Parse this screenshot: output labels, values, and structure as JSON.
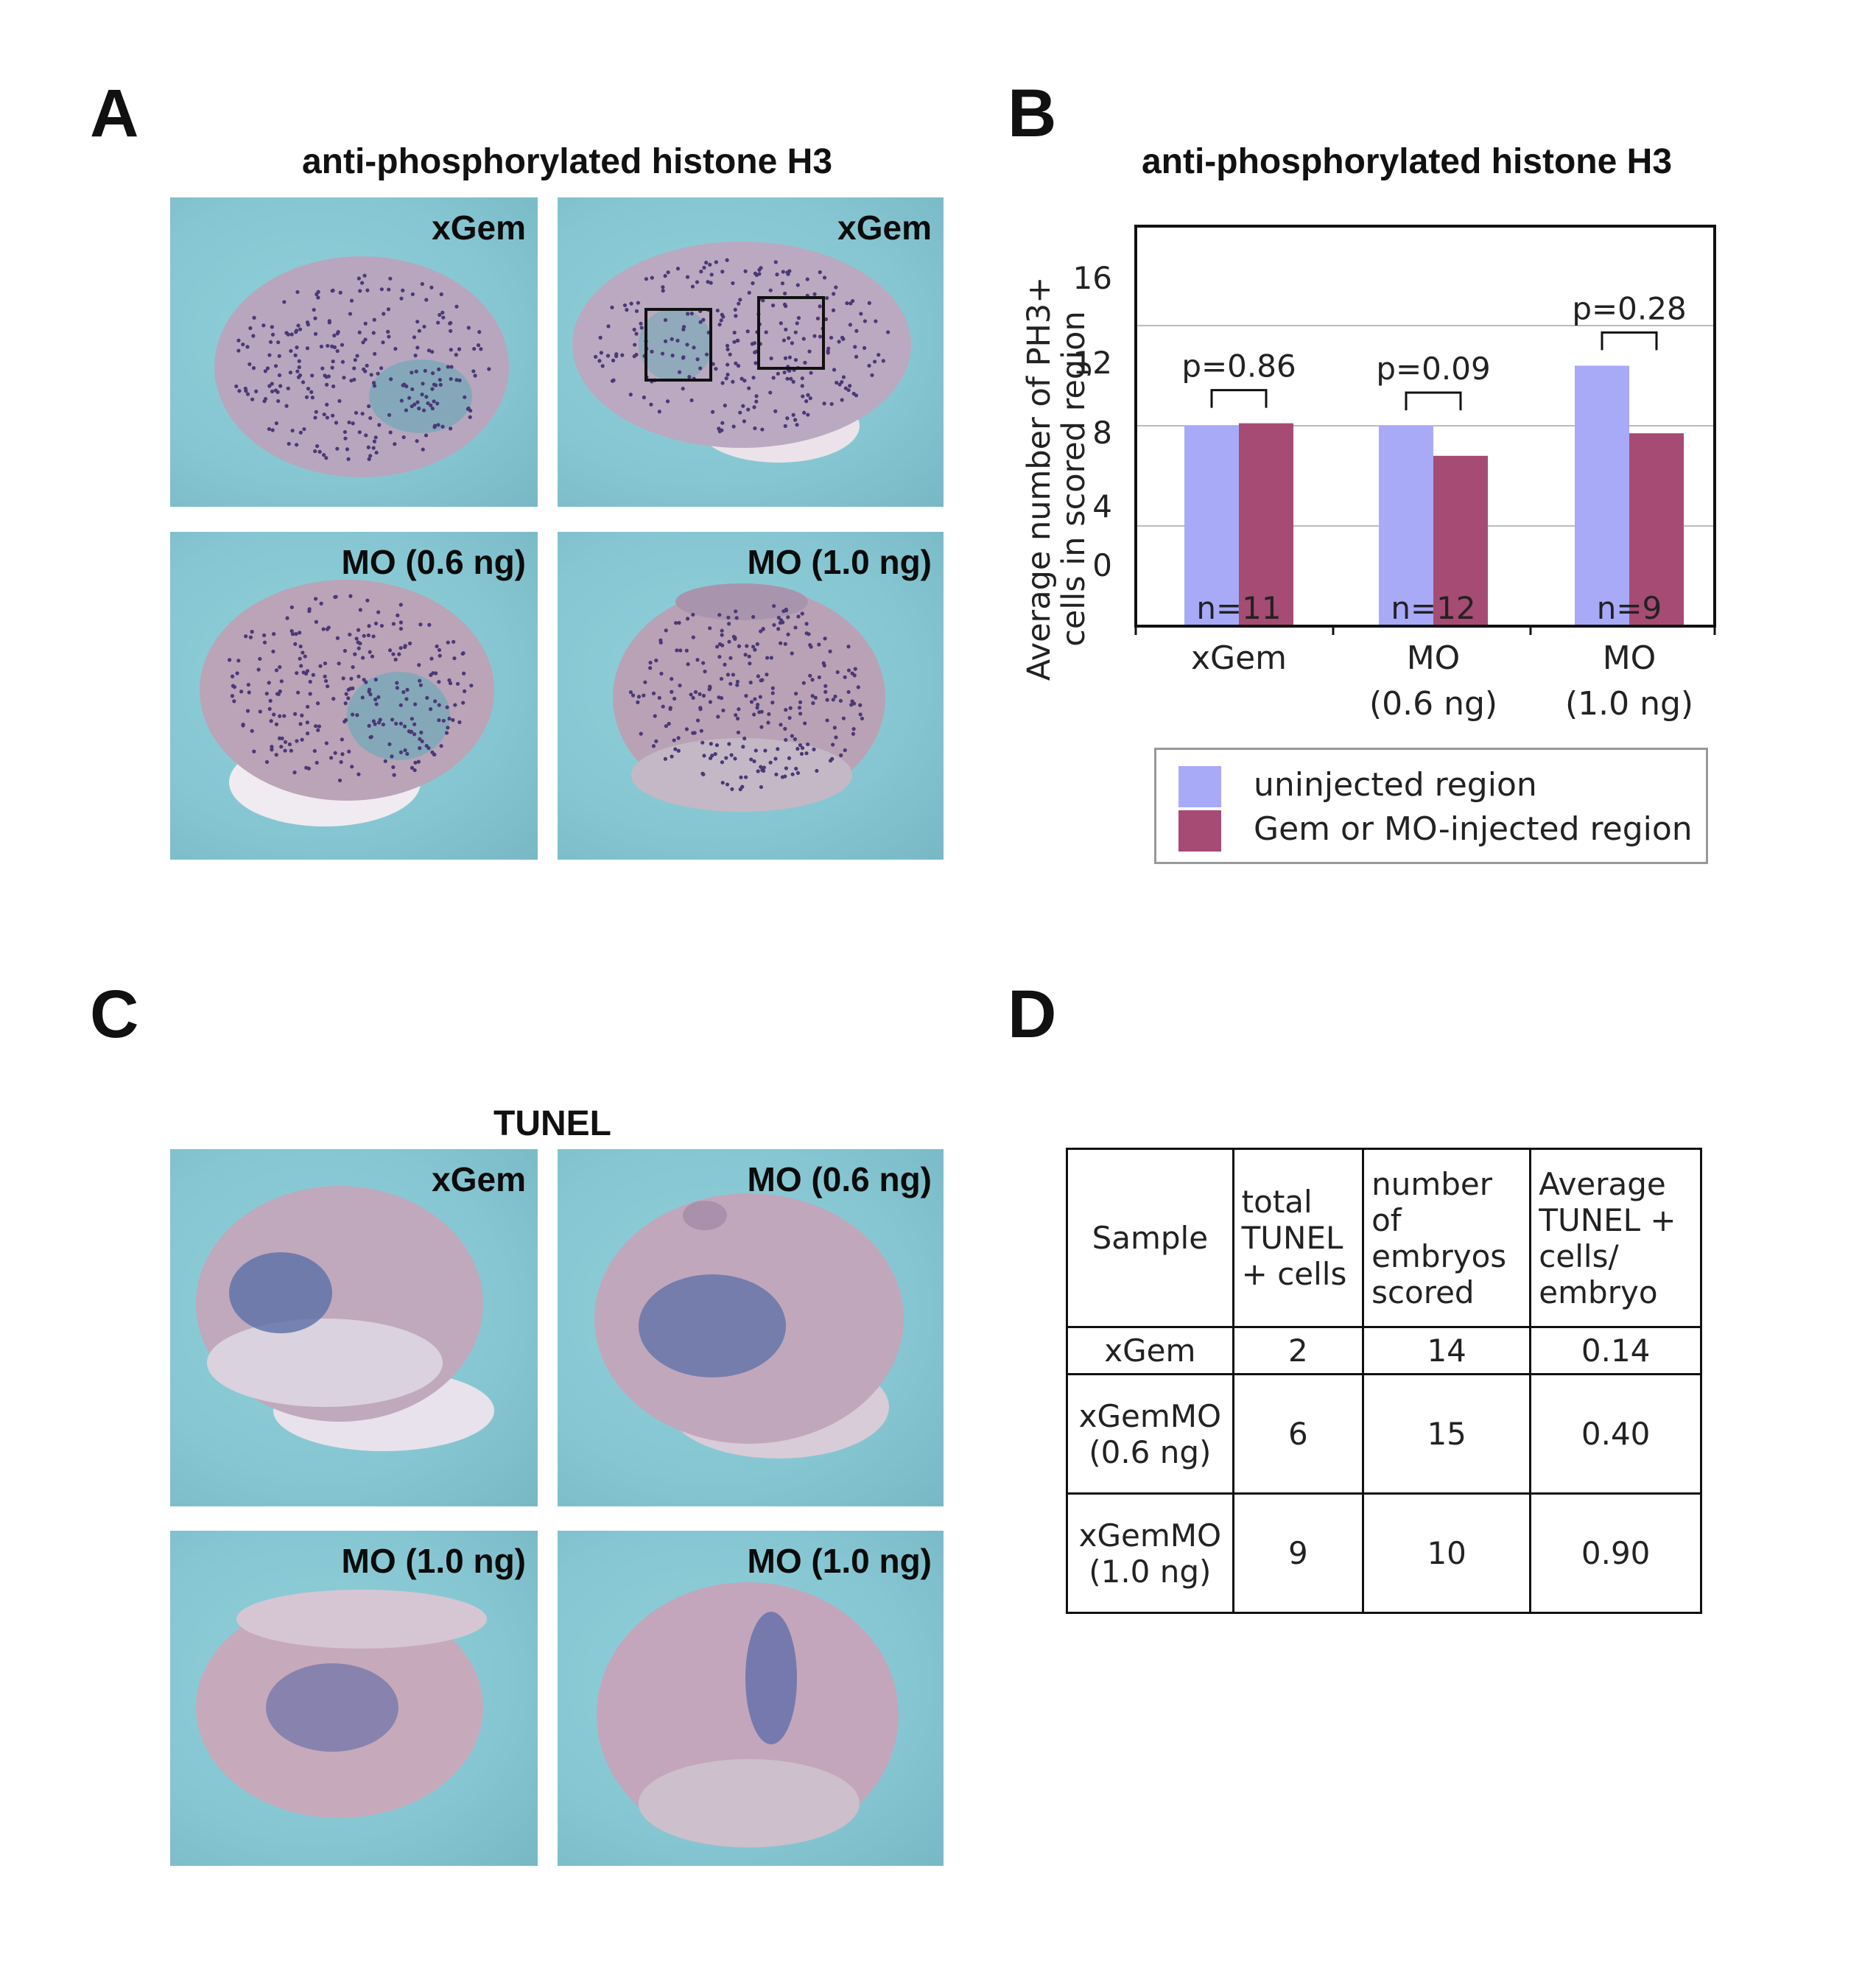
{
  "panel_a": {
    "letter": "A",
    "title": "anti-phosphorylated histone H3",
    "photos": [
      "xGem",
      "xGem",
      "MO (0.6 ng)",
      "MO (1.0 ng)"
    ]
  },
  "panel_b": {
    "letter": "B",
    "title": "anti-phosphorylated histone H3",
    "ylabel_line1": "Average number of PH3+",
    "ylabel_line2": "cells in scored region",
    "legend": [
      "uninjected region",
      "Gem or MO-injected region"
    ]
  },
  "panel_c": {
    "letter": "C",
    "title": "TUNEL",
    "photos": [
      "xGem",
      "MO (0.6 ng)",
      "MO (1.0 ng)",
      "MO (1.0 ng)"
    ]
  },
  "panel_d": {
    "letter": "D",
    "headers": [
      [
        "Sample"
      ],
      [
        "total",
        "TUNEL",
        "+ cells"
      ],
      [
        "number",
        "of",
        "embryos",
        "scored"
      ],
      [
        "Average",
        "TUNEL +",
        "cells/",
        "embryo"
      ]
    ],
    "rows": [
      {
        "sample": [
          "xGem"
        ],
        "total": "2",
        "embryos": "14",
        "average": "0.14"
      },
      {
        "sample": [
          "xGemMO",
          "(0.6 ng)"
        ],
        "total": "6",
        "embryos": "15",
        "average": "0.40"
      },
      {
        "sample": [
          "xGemMO",
          "(1.0 ng)"
        ],
        "total": "9",
        "embryos": "10",
        "average": "0.90"
      }
    ]
  },
  "colors": {
    "uninjected": "#a8aaf7",
    "injected": "#a64b74",
    "photo_background": "#8bcad5"
  },
  "chart_data": {
    "type": "bar",
    "title": "anti-phosphorylated histone H3",
    "ylabel": "Average number of PH3+ cells in scored region",
    "categories": [
      [
        "xGem"
      ],
      [
        "MO",
        "(0.6 ng)"
      ],
      [
        "MO",
        "(1.0 ng)"
      ]
    ],
    "y_ticks": [
      "0",
      "4",
      "8",
      "12",
      "16"
    ],
    "ylim": [
      0,
      16
    ],
    "grid": true,
    "legend_position": "bottom",
    "series": [
      {
        "name": "uninjected region",
        "values": [
          8.0,
          8.0,
          10.4
        ]
      },
      {
        "name": "Gem or MO-injected region",
        "values": [
          8.1,
          6.8,
          7.7
        ]
      }
    ],
    "annotations": [
      "p=0.86",
      "p=0.09",
      "p=0.28"
    ],
    "n_labels": [
      "n=11",
      "n=12",
      "n=9"
    ]
  }
}
